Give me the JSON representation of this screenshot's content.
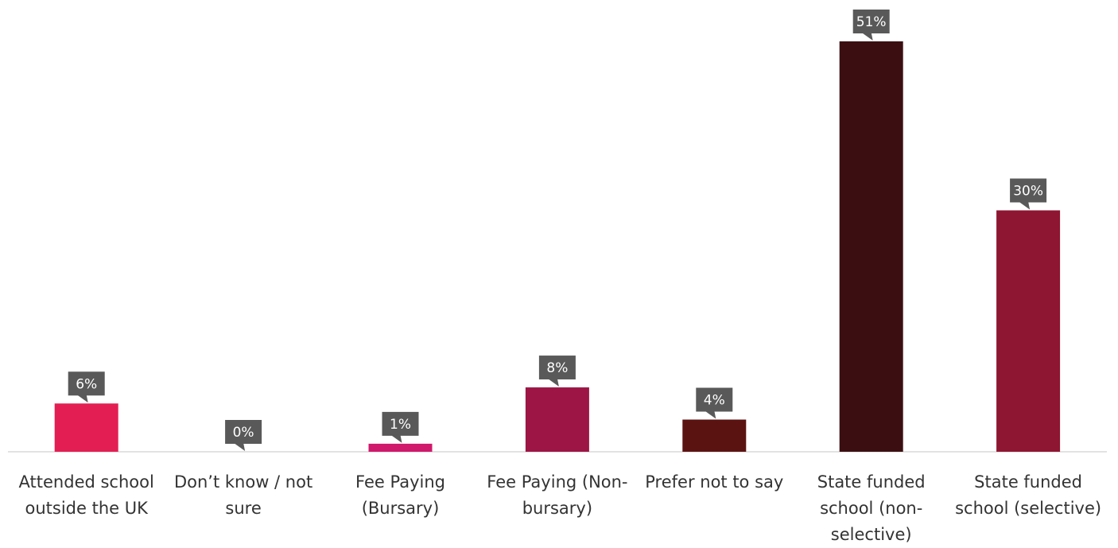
{
  "chart_data": {
    "type": "bar",
    "title": "",
    "xlabel": "",
    "ylabel": "",
    "categories": [
      "Attended school outside the UK",
      "Don’t know / not sure",
      "Fee Paying (Bursary)",
      "Fee Paying (Non- bursary)",
      "Prefer not to say",
      "State funded school (non- selective)",
      "State funded school (selective)"
    ],
    "values": [
      6,
      0,
      1,
      8,
      4,
      51,
      30
    ],
    "data_labels": [
      "6%",
      "0%",
      "1%",
      "8%",
      "4%",
      "51%",
      "30%"
    ],
    "bar_colors": [
      "#e31e52",
      "#e31e52",
      "#d0186c",
      "#9c1545",
      "#5b1311",
      "#3b0f12",
      "#8e1632"
    ],
    "label_box_color": "#595959",
    "axis_color": "#d9d9d9",
    "ylim": [
      0,
      51
    ],
    "grid": false,
    "legend": "none"
  }
}
